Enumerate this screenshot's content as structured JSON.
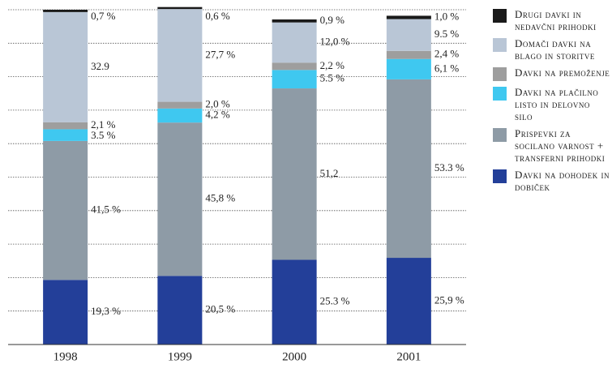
{
  "chart_data": {
    "type": "stacked-bar",
    "categories": [
      "1998",
      "1999",
      "2000",
      "2001"
    ],
    "ylim": [
      0,
      100
    ],
    "yticks": [
      0,
      10,
      20,
      30,
      40,
      50,
      60,
      70,
      80,
      90,
      100
    ],
    "grid": true,
    "series": [
      {
        "name": "Davki na dohodek in dobiček",
        "color": "#233f99",
        "values": [
          19.3,
          20.5,
          25.3,
          25.9
        ],
        "value_labels": [
          "19,3 %",
          "20,5 %",
          "25.3 %",
          "25,9 %"
        ]
      },
      {
        "name": "Prispevki za socilano varnost + transferni prihodki",
        "color": "#8e9ba6",
        "values": [
          41.5,
          45.8,
          51.2,
          53.3
        ],
        "value_labels": [
          "41,5 %",
          "45,8 %",
          "51,2",
          "53.3 %"
        ]
      },
      {
        "name": "Davki na plačilno listo in delovno silo",
        "color": "#3fc8f0",
        "values": [
          3.5,
          4.2,
          5.5,
          6.1
        ],
        "value_labels": [
          "3.5 %",
          "4,2 %",
          "5.5 %",
          "6,1 %"
        ]
      },
      {
        "name": "Davki na premoženje",
        "color": "#9e9e9e",
        "values": [
          2.1,
          2.0,
          2.2,
          2.4
        ],
        "value_labels": [
          "2,1 %",
          "2,0 %",
          "2,2 %",
          "2,4 %"
        ]
      },
      {
        "name": "Domači davki na blago in storitve",
        "color": "#b9c6d6",
        "values": [
          32.9,
          27.7,
          12.0,
          9.5
        ],
        "value_labels": [
          "32.9",
          "27,7 %",
          "12,0 %",
          "9.5 %"
        ]
      },
      {
        "name": "Drugi davki in nedavčni prihodki",
        "color": "#1a1a1a",
        "values": [
          0.7,
          0.6,
          0.9,
          1.0
        ],
        "value_labels": [
          "0,7 %",
          "0,6 %",
          "0,9 %",
          "1,0 %"
        ]
      }
    ]
  }
}
